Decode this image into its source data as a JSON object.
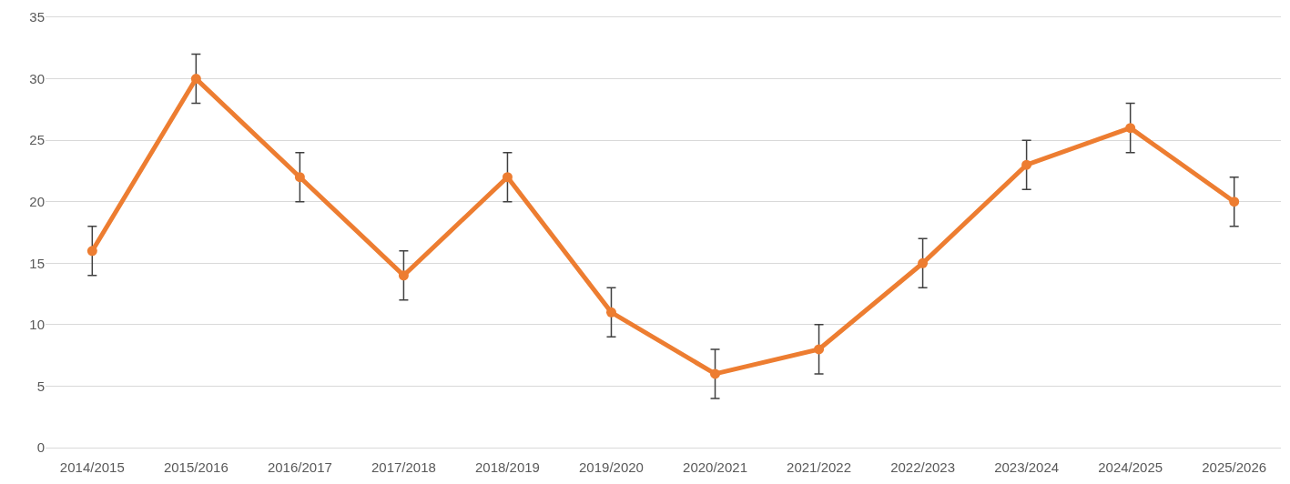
{
  "chart_data": {
    "type": "line",
    "categories": [
      "2014/2015",
      "2015/2016",
      "2016/2017",
      "2017/2018",
      "2018/2019",
      "2019/2020",
      "2020/2021",
      "2021/2022",
      "2022/2023",
      "2023/2024",
      "2024/2025",
      "2025/2026"
    ],
    "series": [
      {
        "color": "#ed7d31",
        "values": [
          16,
          30,
          22,
          14,
          22,
          11,
          6,
          8,
          15,
          23,
          26,
          20
        ],
        "errors": [
          2,
          2,
          2,
          2,
          2,
          2,
          2,
          2,
          2,
          2,
          2,
          2
        ]
      }
    ],
    "ylim": [
      0,
      35
    ],
    "yticks": [
      0,
      5,
      10,
      15,
      20,
      25,
      30,
      35
    ],
    "grid": "y",
    "marker": "circle",
    "line_style": "solid"
  }
}
